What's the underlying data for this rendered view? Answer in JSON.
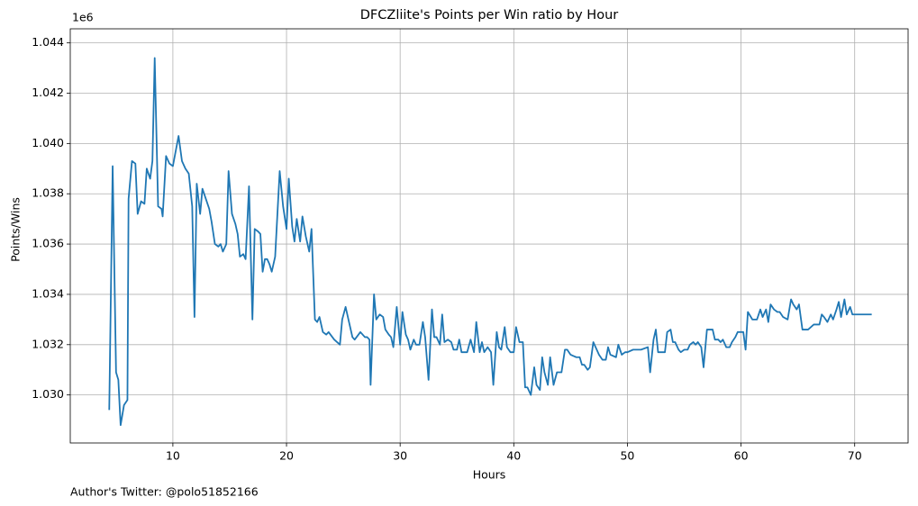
{
  "chart_data": {
    "type": "line",
    "title": "DFCZliite's Points per Win ratio by Hour",
    "x_label": "Hours",
    "y_label": "Points/Wins",
    "y_offset_label": "1e6",
    "footnote": "Author's Twitter: @polo51852166",
    "xlim": [
      0.97,
      74.7
    ],
    "ylim": [
      1.02809,
      1.04456
    ],
    "xticks": [
      10,
      20,
      30,
      40,
      50,
      60,
      70
    ],
    "yticks": [
      {
        "value": 1.03,
        "label": "1.030"
      },
      {
        "value": 1.032,
        "label": "1.032"
      },
      {
        "value": 1.034,
        "label": "1.034"
      },
      {
        "value": 1.036,
        "label": "1.036"
      },
      {
        "value": 1.038,
        "label": "1.038"
      },
      {
        "value": 1.04,
        "label": "1.040"
      },
      {
        "value": 1.042,
        "label": "1.042"
      },
      {
        "value": 1.044,
        "label": "1.044"
      }
    ],
    "grid": true,
    "series": [
      {
        "name": "Points/Wins",
        "color": "#1f77b4",
        "x": [
          4.4,
          4.7,
          5.0,
          5.2,
          5.4,
          5.7,
          6.0,
          6.1,
          6.4,
          6.7,
          6.9,
          7.2,
          7.5,
          7.7,
          8.0,
          8.2,
          8.4,
          8.7,
          9.0,
          9.1,
          9.4,
          9.7,
          10.0,
          10.5,
          10.8,
          11.1,
          11.4,
          11.7,
          11.9,
          12.1,
          12.4,
          12.6,
          12.9,
          13.2,
          13.4,
          13.7,
          14.0,
          14.2,
          14.4,
          14.7,
          14.9,
          15.2,
          15.5,
          15.7,
          15.9,
          16.2,
          16.4,
          16.7,
          17.0,
          17.2,
          17.5,
          17.7,
          17.9,
          18.1,
          18.3,
          18.5,
          18.7,
          19.0,
          19.4,
          19.7,
          20.0,
          20.2,
          20.5,
          20.7,
          20.9,
          21.2,
          21.4,
          21.7,
          22.0,
          22.2,
          22.5,
          22.7,
          22.9,
          23.2,
          23.5,
          23.7,
          24.2,
          24.7,
          24.9,
          25.2,
          25.5,
          25.8,
          26.0,
          26.5,
          26.9,
          27.1,
          27.3,
          27.4,
          27.7,
          27.9,
          28.2,
          28.5,
          28.7,
          29.0,
          29.2,
          29.4,
          29.7,
          30.0,
          30.2,
          30.5,
          30.7,
          30.9,
          31.2,
          31.4,
          31.7,
          32.0,
          32.2,
          32.5,
          32.8,
          33.0,
          33.2,
          33.5,
          33.7,
          33.9,
          34.2,
          34.5,
          34.7,
          35.0,
          35.2,
          35.4,
          35.9,
          36.2,
          36.5,
          36.7,
          37.0,
          37.2,
          37.4,
          37.7,
          38.0,
          38.2,
          38.5,
          38.7,
          38.9,
          39.2,
          39.4,
          39.7,
          40.0,
          40.2,
          40.5,
          40.8,
          41.0,
          41.2,
          41.5,
          41.8,
          42.0,
          42.3,
          42.5,
          42.7,
          43.0,
          43.2,
          43.5,
          43.8,
          44.2,
          44.5,
          44.7,
          45.0,
          45.5,
          45.8,
          46.0,
          46.2,
          46.5,
          46.7,
          47.0,
          47.3,
          47.5,
          47.8,
          48.1,
          48.3,
          48.5,
          49.0,
          49.2,
          49.5,
          49.8,
          50.0,
          50.5,
          51.0,
          51.2,
          51.8,
          52.0,
          52.3,
          52.5,
          52.7,
          53.3,
          53.5,
          53.8,
          54.0,
          54.2,
          54.5,
          54.7,
          55.0,
          55.3,
          55.5,
          55.8,
          56.0,
          56.2,
          56.5,
          56.7,
          57.0,
          57.5,
          57.7,
          58.0,
          58.2,
          58.4,
          58.7,
          59.0,
          59.2,
          59.5,
          59.7,
          60.2,
          60.4,
          60.6,
          61.0,
          61.4,
          61.7,
          61.9,
          62.2,
          62.4,
          62.6,
          62.9,
          63.2,
          63.4,
          63.7,
          64.1,
          64.4,
          64.6,
          64.9,
          65.1,
          65.4,
          65.9,
          66.4,
          66.9,
          67.1,
          67.3,
          67.6,
          67.9,
          68.1,
          68.4,
          68.6,
          68.8,
          69.1,
          69.3,
          69.6,
          69.8,
          71.5
        ],
        "values": [
          1.0294,
          1.0391,
          1.0309,
          1.0306,
          1.0288,
          1.0296,
          1.0298,
          1.0378,
          1.0393,
          1.0392,
          1.0372,
          1.0377,
          1.0376,
          1.039,
          1.0386,
          1.0393,
          1.0434,
          1.0375,
          1.0374,
          1.0371,
          1.0395,
          1.0392,
          1.0391,
          1.0403,
          1.0393,
          1.039,
          1.0388,
          1.0375,
          1.0331,
          1.0384,
          1.0372,
          1.0382,
          1.0378,
          1.0374,
          1.0369,
          1.036,
          1.0359,
          1.036,
          1.0357,
          1.036,
          1.0389,
          1.0372,
          1.0368,
          1.0364,
          1.0355,
          1.0356,
          1.0354,
          1.0383,
          1.033,
          1.0366,
          1.0365,
          1.0364,
          1.0349,
          1.0354,
          1.0354,
          1.0352,
          1.0349,
          1.0355,
          1.0389,
          1.0375,
          1.0366,
          1.0386,
          1.0367,
          1.0361,
          1.037,
          1.0361,
          1.0371,
          1.0363,
          1.0357,
          1.0366,
          1.033,
          1.0329,
          1.0331,
          1.0325,
          1.0324,
          1.0325,
          1.0322,
          1.032,
          1.033,
          1.0335,
          1.0329,
          1.0323,
          1.0322,
          1.0325,
          1.0323,
          1.0323,
          1.0322,
          1.0304,
          1.034,
          1.033,
          1.0332,
          1.0331,
          1.0326,
          1.0324,
          1.0323,
          1.0319,
          1.0335,
          1.032,
          1.0333,
          1.0324,
          1.0322,
          1.0318,
          1.0322,
          1.032,
          1.032,
          1.0329,
          1.0323,
          1.0306,
          1.0334,
          1.0323,
          1.0323,
          1.032,
          1.0332,
          1.0321,
          1.0322,
          1.0321,
          1.0318,
          1.0318,
          1.0322,
          1.0317,
          1.0317,
          1.0322,
          1.0317,
          1.0329,
          1.0317,
          1.0321,
          1.0317,
          1.0319,
          1.0317,
          1.0304,
          1.0325,
          1.0319,
          1.0318,
          1.0327,
          1.0319,
          1.0317,
          1.0317,
          1.0327,
          1.0321,
          1.0321,
          1.0303,
          1.0303,
          1.03,
          1.0311,
          1.0304,
          1.0302,
          1.0315,
          1.0309,
          1.0304,
          1.0315,
          1.0304,
          1.0309,
          1.0309,
          1.0318,
          1.0318,
          1.0316,
          1.0315,
          1.0315,
          1.0312,
          1.0312,
          1.031,
          1.0311,
          1.0321,
          1.0318,
          1.0316,
          1.0314,
          1.0314,
          1.0319,
          1.0316,
          1.0315,
          1.032,
          1.0316,
          1.0317,
          1.0317,
          1.0318,
          1.0318,
          1.0318,
          1.0319,
          1.0309,
          1.0322,
          1.0326,
          1.0317,
          1.0317,
          1.0325,
          1.0326,
          1.0321,
          1.0321,
          1.0318,
          1.0317,
          1.0318,
          1.0318,
          1.032,
          1.0321,
          1.032,
          1.0321,
          1.0319,
          1.0311,
          1.0326,
          1.0326,
          1.0322,
          1.0322,
          1.0321,
          1.0322,
          1.0319,
          1.0319,
          1.0321,
          1.0323,
          1.0325,
          1.0325,
          1.0318,
          1.0333,
          1.033,
          1.033,
          1.0334,
          1.0331,
          1.0334,
          1.0329,
          1.0336,
          1.0334,
          1.0333,
          1.0333,
          1.0331,
          1.033,
          1.0338,
          1.0336,
          1.0334,
          1.0336,
          1.0326,
          1.0326,
          1.0328,
          1.0328,
          1.0332,
          1.0331,
          1.0329,
          1.0332,
          1.033,
          1.0334,
          1.0337,
          1.0331,
          1.0338,
          1.0332,
          1.0335,
          1.0332,
          1.0332
        ]
      }
    ]
  }
}
